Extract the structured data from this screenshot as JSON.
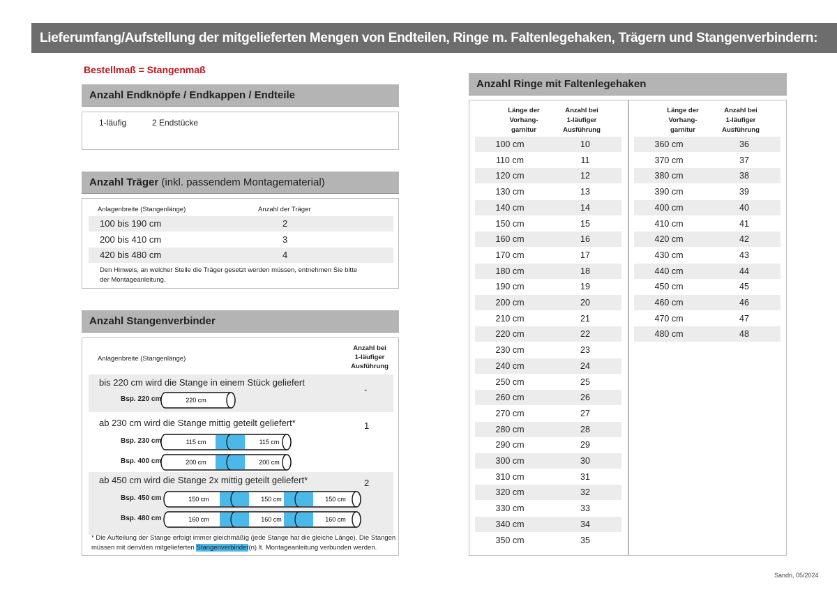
{
  "title": "Lieferumfang/Aufstellung der mitgelieferten Mengen von Endteilen, Ringe m. Faltenlegehaken, Trägern und Stangenverbindern:",
  "subtitle": "Bestellmaß = Stangenmaß",
  "endteile": {
    "heading": "Anzahl Endknöpfe / Endkappen / Endteile",
    "label": "1-läufig",
    "value": "2 Endstücke"
  },
  "traeger": {
    "heading": "Anzahl Träger",
    "heading_suffix": " (inkl. passendem Montagematerial)",
    "col1": "Anlagenbreite (Stangenlänge)",
    "col2": "Anzahl der Träger",
    "rows": [
      {
        "range": "100 bis 190 cm",
        "count": "2"
      },
      {
        "range": "200 bis 410 cm",
        "count": "3"
      },
      {
        "range": "420 bis 480 cm",
        "count": "4"
      }
    ],
    "note1": "Den Hinweis, an welcher Stelle die Träger gesetzt werden müssen, entnehmen Sie bitte",
    "note2": "der Montageanleitung."
  },
  "verbinder": {
    "heading": "Anzahl Stangenverbinder",
    "col1": "Anlagenbreite (Stangenlänge)",
    "col2a": "Anzahl bei",
    "col2b": "1-läufiger",
    "col2c": "Ausführung",
    "groups": [
      {
        "text": "bis 220 cm wird die Stange in einem Stück geliefert",
        "count": "-",
        "examples": [
          {
            "label": "Bsp. 220 cm",
            "parts": [
              "220 cm"
            ]
          }
        ]
      },
      {
        "text": "ab 230 cm wird die Stange mittig geteilt geliefert*",
        "count": "1",
        "examples": [
          {
            "label": "Bsp. 230 cm",
            "parts": [
              "115 cm",
              "115 cm"
            ]
          },
          {
            "label": "Bsp. 400 cm",
            "parts": [
              "200 cm",
              "200 cm"
            ]
          }
        ]
      },
      {
        "text": "ab 450 cm wird die Stange 2x mittig geteilt geliefert*",
        "count": "2",
        "examples": [
          {
            "label": "Bsp. 450 cm",
            "parts": [
              "150 cm",
              "150 cm",
              "150 cm"
            ]
          },
          {
            "label": "Bsp. 480 cm",
            "parts": [
              "160 cm",
              "160 cm",
              "160 cm"
            ]
          }
        ]
      }
    ],
    "footnote1": "* Die Aufteilung der Stange erfolgt immer gleichmäßig (jede Stange hat die gleiche Länge). Die Stangen",
    "footnote2a": "müssen mit dem/den mitgelieferten ",
    "footnote2_highlight": "Stangenverbinder",
    "footnote2b": "(n) lt. Montageanleitung verbunden werden.",
    "highlight_color": "#4ab8e8"
  },
  "ringe": {
    "heading": "Anzahl Ringe mit Faltenlegehaken",
    "col1": [
      "Länge der",
      "Vorhang-",
      "garnitur"
    ],
    "col2": [
      "Anzahl bei",
      "1-läufiger",
      "Ausführung"
    ],
    "left": [
      [
        "100 cm",
        "10"
      ],
      [
        "110 cm",
        "11"
      ],
      [
        "120 cm",
        "12"
      ],
      [
        "130 cm",
        "13"
      ],
      [
        "140 cm",
        "14"
      ],
      [
        "150 cm",
        "15"
      ],
      [
        "160 cm",
        "16"
      ],
      [
        "170 cm",
        "17"
      ],
      [
        "180 cm",
        "18"
      ],
      [
        "190 cm",
        "19"
      ],
      [
        "200 cm",
        "20"
      ],
      [
        "210 cm",
        "21"
      ],
      [
        "220 cm",
        "22"
      ],
      [
        "230 cm",
        "23"
      ],
      [
        "240 cm",
        "24"
      ],
      [
        "250 cm",
        "25"
      ],
      [
        "260 cm",
        "26"
      ],
      [
        "270 cm",
        "27"
      ],
      [
        "280 cm",
        "28"
      ],
      [
        "290 cm",
        "29"
      ],
      [
        "300 cm",
        "30"
      ],
      [
        "310 cm",
        "31"
      ],
      [
        "320 cm",
        "32"
      ],
      [
        "330 cm",
        "33"
      ],
      [
        "340 cm",
        "34"
      ],
      [
        "350 cm",
        "35"
      ]
    ],
    "right": [
      [
        "360 cm",
        "36"
      ],
      [
        "370 cm",
        "37"
      ],
      [
        "380 cm",
        "38"
      ],
      [
        "390 cm",
        "39"
      ],
      [
        "400 cm",
        "40"
      ],
      [
        "410 cm",
        "41"
      ],
      [
        "420 cm",
        "42"
      ],
      [
        "430 cm",
        "43"
      ],
      [
        "440 cm",
        "44"
      ],
      [
        "450 cm",
        "45"
      ],
      [
        "460 cm",
        "46"
      ],
      [
        "470 cm",
        "47"
      ],
      [
        "480 cm",
        "48"
      ]
    ]
  },
  "footer": "Sandri, 05/2024"
}
